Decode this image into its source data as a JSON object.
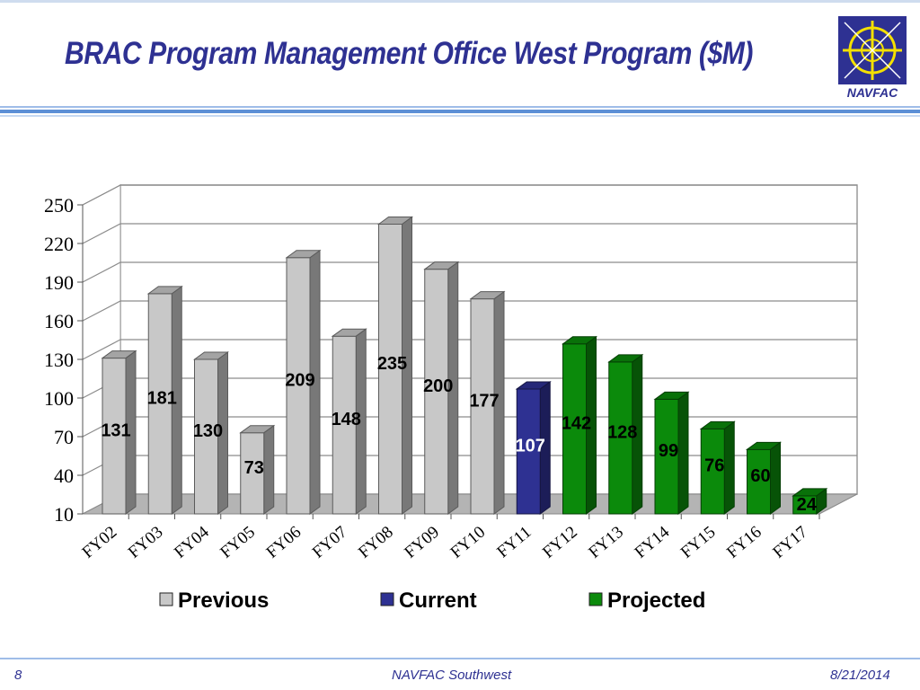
{
  "slide": {
    "title": "BRAC Program Management Office West Program ($M)",
    "logo_text": "NAVFAC",
    "page_number": "8",
    "organization": "NAVFAC Southwest",
    "date": "8/21/2014"
  },
  "colors": {
    "title": "#2e3192",
    "previous": "#c8c8c8",
    "current": "#2e3192",
    "projected": "#0b8a0b"
  },
  "chart_data": {
    "type": "bar",
    "title": "",
    "xlabel": "",
    "ylabel": "",
    "categories": [
      "FY02",
      "FY03",
      "FY04",
      "FY05",
      "FY06",
      "FY07",
      "FY08",
      "FY09",
      "FY10",
      "FY11",
      "FY12",
      "FY13",
      "FY14",
      "FY15",
      "FY16",
      "FY17"
    ],
    "values": [
      131,
      181,
      130,
      73,
      209,
      148,
      235,
      200,
      177,
      107,
      142,
      128,
      99,
      76,
      60,
      24
    ],
    "groups": [
      "Previous",
      "Previous",
      "Previous",
      "Previous",
      "Previous",
      "Previous",
      "Previous",
      "Previous",
      "Previous",
      "Current",
      "Projected",
      "Projected",
      "Projected",
      "Projected",
      "Projected",
      "Projected"
    ],
    "legend": [
      "Previous",
      "Current",
      "Projected"
    ],
    "legend_position": "bottom",
    "ylim": [
      10,
      250
    ],
    "yticks": [
      10,
      40,
      70,
      100,
      130,
      160,
      190,
      220,
      250
    ],
    "grid": true,
    "style": "3d"
  }
}
